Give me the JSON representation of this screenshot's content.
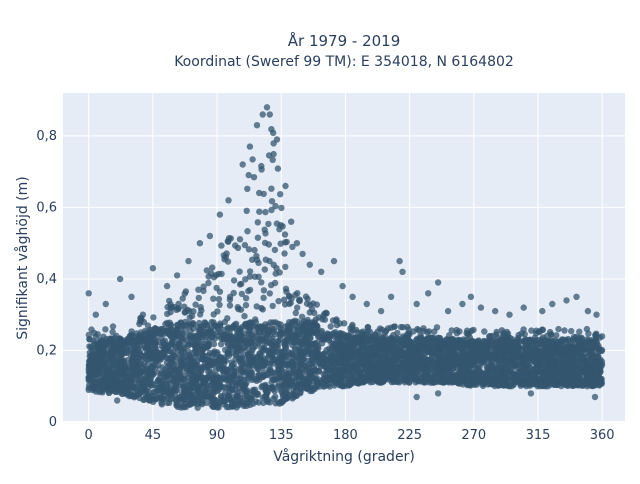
{
  "chart_data": {
    "type": "scatter",
    "title": "År 1979 - 2019",
    "subtitle": "Koordinat (Sweref 99 TM): E 354018, N 6164802",
    "xlabel": "Vågriktning (grader)",
    "ylabel": "Signifikant våghöjd (m)",
    "xlim": [
      -18,
      376
    ],
    "ylim": [
      0,
      0.92
    ],
    "xticks": [
      0,
      45,
      90,
      135,
      180,
      225,
      270,
      315,
      360
    ],
    "yticks": [
      0,
      0.2,
      0.4,
      0.6,
      0.8
    ],
    "ytick_labels": [
      "0",
      "0,2",
      "0,4",
      "0,6",
      "0,8"
    ],
    "grid": true,
    "legend": "none",
    "marker_color": "#34566f",
    "plot_background": "#e5ecf6",
    "envelope": {
      "description_units": "direction (degrees) vs significant wave height (m)",
      "x": [
        0,
        10,
        20,
        30,
        40,
        50,
        60,
        70,
        80,
        90,
        100,
        105,
        110,
        115,
        120,
        125,
        128,
        130,
        135,
        140,
        145,
        150,
        160,
        170,
        180,
        195,
        210,
        225,
        240,
        255,
        270,
        285,
        300,
        315,
        330,
        345,
        360
      ],
      "y_low": [
        0.09,
        0.08,
        0.08,
        0.07,
        0.06,
        0.05,
        0.04,
        0.04,
        0.04,
        0.04,
        0.04,
        0.04,
        0.04,
        0.05,
        0.05,
        0.05,
        0.05,
        0.05,
        0.05,
        0.06,
        0.07,
        0.08,
        0.09,
        0.1,
        0.1,
        0.11,
        0.11,
        0.11,
        0.11,
        0.11,
        0.1,
        0.1,
        0.1,
        0.1,
        0.1,
        0.1,
        0.1
      ],
      "y_high": [
        0.26,
        0.26,
        0.27,
        0.28,
        0.3,
        0.32,
        0.35,
        0.38,
        0.42,
        0.48,
        0.55,
        0.6,
        0.66,
        0.74,
        0.8,
        0.82,
        0.84,
        0.8,
        0.7,
        0.55,
        0.45,
        0.38,
        0.33,
        0.3,
        0.28,
        0.27,
        0.27,
        0.27,
        0.27,
        0.26,
        0.26,
        0.26,
        0.26,
        0.26,
        0.26,
        0.26,
        0.26
      ]
    },
    "outliers": [
      {
        "x": 0,
        "y": 0.36
      },
      {
        "x": 5,
        "y": 0.3
      },
      {
        "x": 12,
        "y": 0.33
      },
      {
        "x": 22,
        "y": 0.4
      },
      {
        "x": 30,
        "y": 0.35
      },
      {
        "x": 38,
        "y": 0.3
      },
      {
        "x": 45,
        "y": 0.43
      },
      {
        "x": 55,
        "y": 0.38
      },
      {
        "x": 62,
        "y": 0.41
      },
      {
        "x": 70,
        "y": 0.45
      },
      {
        "x": 78,
        "y": 0.5
      },
      {
        "x": 85,
        "y": 0.52
      },
      {
        "x": 92,
        "y": 0.58
      },
      {
        "x": 98,
        "y": 0.62
      },
      {
        "x": 108,
        "y": 0.72
      },
      {
        "x": 113,
        "y": 0.77
      },
      {
        "x": 118,
        "y": 0.83
      },
      {
        "x": 122,
        "y": 0.86
      },
      {
        "x": 125,
        "y": 0.88
      },
      {
        "x": 127,
        "y": 0.86
      },
      {
        "x": 132,
        "y": 0.79
      },
      {
        "x": 138,
        "y": 0.66
      },
      {
        "x": 142,
        "y": 0.56
      },
      {
        "x": 146,
        "y": 0.5
      },
      {
        "x": 150,
        "y": 0.47
      },
      {
        "x": 155,
        "y": 0.44
      },
      {
        "x": 163,
        "y": 0.42
      },
      {
        "x": 172,
        "y": 0.45
      },
      {
        "x": 178,
        "y": 0.38
      },
      {
        "x": 185,
        "y": 0.35
      },
      {
        "x": 195,
        "y": 0.33
      },
      {
        "x": 205,
        "y": 0.31
      },
      {
        "x": 212,
        "y": 0.35
      },
      {
        "x": 218,
        "y": 0.45
      },
      {
        "x": 220,
        "y": 0.42
      },
      {
        "x": 230,
        "y": 0.33
      },
      {
        "x": 238,
        "y": 0.36
      },
      {
        "x": 245,
        "y": 0.39
      },
      {
        "x": 252,
        "y": 0.31
      },
      {
        "x": 262,
        "y": 0.33
      },
      {
        "x": 268,
        "y": 0.35
      },
      {
        "x": 275,
        "y": 0.32
      },
      {
        "x": 285,
        "y": 0.31
      },
      {
        "x": 295,
        "y": 0.3
      },
      {
        "x": 305,
        "y": 0.32
      },
      {
        "x": 318,
        "y": 0.31
      },
      {
        "x": 325,
        "y": 0.33
      },
      {
        "x": 335,
        "y": 0.34
      },
      {
        "x": 342,
        "y": 0.35
      },
      {
        "x": 350,
        "y": 0.31
      },
      {
        "x": 356,
        "y": 0.3
      },
      {
        "x": 20,
        "y": 0.06
      },
      {
        "x": 230,
        "y": 0.07
      },
      {
        "x": 245,
        "y": 0.08
      },
      {
        "x": 310,
        "y": 0.08
      },
      {
        "x": 355,
        "y": 0.07
      }
    ]
  }
}
